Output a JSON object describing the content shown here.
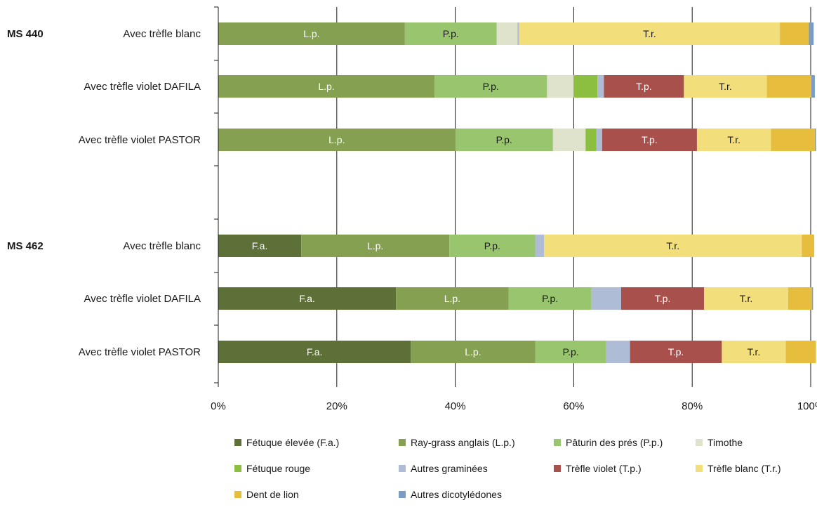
{
  "chart_data": {
    "type": "bar",
    "orientation": "horizontal",
    "stacked": true,
    "xlim": [
      0,
      100
    ],
    "x_ticks": [
      "0%",
      "20%",
      "40%",
      "60%",
      "80%",
      "100%"
    ],
    "grid": "vertical",
    "legend_position": "bottom",
    "groups": [
      {
        "label": "MS 440",
        "rows": [
          {
            "label": "Avec trèfle blanc",
            "values": [
              0,
              31.5,
              15.5,
              3.5,
              0,
              0.3,
              0,
              44,
              4.9,
              0.8
            ]
          },
          {
            "label": "Avec trèfle violet DAFILA",
            "values": [
              0,
              36.5,
              19,
              4.5,
              4,
              1.1,
              13.5,
              14,
              7.5,
              0.6
            ]
          },
          {
            "label": "Avec trèfle violet PASTOR",
            "values": [
              0,
              40,
              16.5,
              5.5,
              1.8,
              1,
              16,
              12.5,
              7.4,
              0.2
            ]
          }
        ]
      },
      {
        "label": "MS 462",
        "rows": [
          {
            "label": "Avec trèfle blanc",
            "values": [
              14,
              25,
              14.5,
              0,
              0,
              1.5,
              0,
              43.5,
              2.1,
              0
            ]
          },
          {
            "label": "Avec trèfle violet DAFILA",
            "values": [
              30,
              19,
              14,
              0,
              0,
              5,
              14,
              14.2,
              4,
              0.2
            ]
          },
          {
            "label": "Avec trèfle violet PASTOR",
            "values": [
              32.5,
              21,
              12,
              0,
              0,
              4,
              15.5,
              10.8,
              5.1,
              0
            ]
          }
        ]
      }
    ],
    "series": [
      {
        "name": "Fétuque élevée  (F.a.)",
        "short": "F.a.",
        "color": "#5d7037"
      },
      {
        "name": "Ray-grass anglais (L.p.)",
        "short": "L.p.",
        "color": "#86a052"
      },
      {
        "name": "Pâturin des prés (P.p.)",
        "short": "P.p.",
        "color": "#98c56e"
      },
      {
        "name": "Timothe",
        "short": "",
        "color": "#dfe3cc"
      },
      {
        "name": "Fétuque rouge",
        "short": "",
        "color": "#8cbf3f"
      },
      {
        "name": "Autres graminées",
        "short": "",
        "color": "#aebcd6"
      },
      {
        "name": "Trèfle violet (T.p.)",
        "short": "T.p.",
        "color": "#a8504b"
      },
      {
        "name": "Trèfle blanc (T.r.)",
        "short": "T.r.",
        "color": "#f3de7c"
      },
      {
        "name": "Dent de lion",
        "short": "",
        "color": "#e6bd3c"
      },
      {
        "name": "Autres dicotylédones",
        "short": "",
        "color": "#7b9cc4"
      }
    ],
    "label_colors": {
      "dark": "#ffffff",
      "light": "#1a1a1a"
    }
  }
}
